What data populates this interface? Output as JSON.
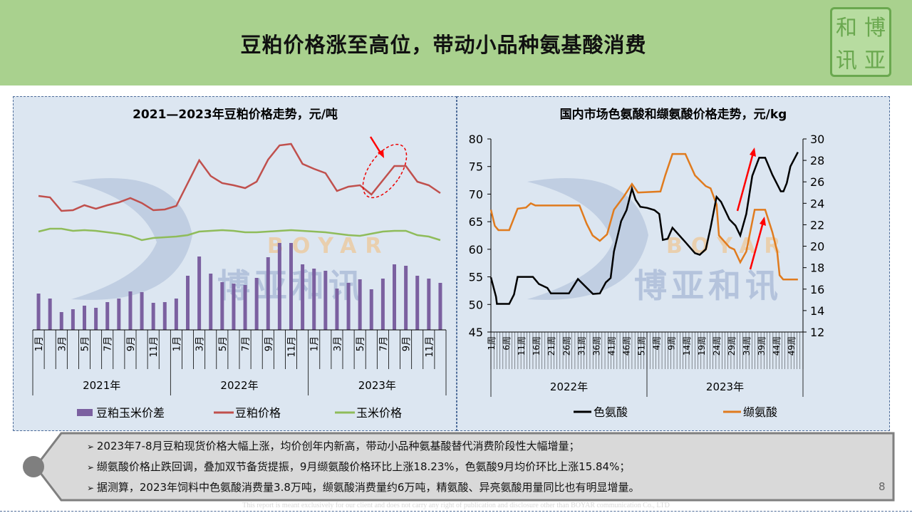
{
  "header": {
    "title": "豆粕价格涨至高位，带动小品种氨基酸消费",
    "logo_chars": [
      "和",
      "博",
      "讯",
      "亚"
    ]
  },
  "watermark": {
    "latin": "BOYAR",
    "chinese": "博亚和讯"
  },
  "colors": {
    "header": "#a9d18e",
    "bar": "#7b60a0",
    "soymeal": "#c0504d",
    "corn": "#8fbc5a",
    "trp": "#000000",
    "val": "#e07b1e",
    "arrow": "#ff0000"
  },
  "chart_data": [
    {
      "type": "bar+line",
      "title": "2021—2023年豆粕价格走势，元/吨",
      "years": [
        "2021年",
        "2022年",
        "2023年"
      ],
      "month_ticks": [
        "1月",
        "3月",
        "5月",
        "7月",
        "9月",
        "11月"
      ],
      "ylim": [
        0,
        283
      ],
      "note": "no y-axis labels shown; values are relative",
      "series": [
        {
          "name": "豆粕玉米价差",
          "kind": "bar",
          "values": [
            51,
            44,
            25,
            29,
            34,
            31,
            39,
            44,
            54,
            53,
            38,
            39,
            44,
            76,
            103,
            79,
            67,
            65,
            63,
            73,
            102,
            122,
            122,
            92,
            86,
            83,
            58,
            66,
            71,
            57,
            72,
            92,
            90,
            76,
            72,
            66
          ]
        },
        {
          "name": "豆粕价格",
          "kind": "line",
          "values": [
            188,
            186,
            167,
            168,
            175,
            170,
            175,
            179,
            185,
            178,
            168,
            169,
            174,
            206,
            238,
            216,
            206,
            203,
            199,
            208,
            239,
            259,
            261,
            233,
            226,
            220,
            195,
            201,
            203,
            190,
            210,
            230,
            230,
            208,
            203,
            192
          ]
        },
        {
          "name": "玉米价格",
          "kind": "line",
          "values": [
            138,
            142,
            142,
            139,
            140,
            139,
            137,
            135,
            132,
            126,
            129,
            130,
            131,
            133,
            138,
            139,
            140,
            139,
            137,
            137,
            138,
            139,
            140,
            139,
            138,
            137,
            135,
            133,
            132,
            135,
            138,
            139,
            139,
            133,
            131,
            126
          ]
        }
      ],
      "legend": [
        "豆粕玉米价差",
        "豆粕价格",
        "玉米价格"
      ],
      "legend_position": "bottom"
    },
    {
      "type": "line",
      "title": "国内市场色氨酸和缬氨酸价格走势，元/kg",
      "years": [
        "2022年",
        "2023年"
      ],
      "week_ticks_2022": [
        "1周",
        "6周",
        "11周",
        "16周",
        "21周",
        "26周",
        "31周",
        "36周",
        "41周",
        "46周",
        "51周"
      ],
      "week_ticks_2023": [
        "4周",
        "9周",
        "14周",
        "19周",
        "24周",
        "29周",
        "34周",
        "39周",
        "44周",
        "49周"
      ],
      "x_range_weeks": [
        0,
        104
      ],
      "y_left": {
        "ticks": [
          45,
          50,
          55,
          60,
          65,
          70,
          75,
          80
        ],
        "lim": [
          45,
          80
        ]
      },
      "y_right": {
        "ticks": [
          12,
          14,
          16,
          18,
          20,
          22,
          24,
          26,
          28,
          30
        ],
        "lim": [
          12,
          30
        ]
      },
      "series": [
        {
          "name": "色氨酸",
          "axis": "left",
          "points": [
            [
              0,
              54.9
            ],
            [
              1.7,
              51.4
            ],
            [
              2,
              50.1
            ],
            [
              6.1,
              50.1
            ],
            [
              7.7,
              51.8
            ],
            [
              8.9,
              55
            ],
            [
              14,
              55
            ],
            [
              16,
              53.7
            ],
            [
              18.8,
              53
            ],
            [
              20,
              52
            ],
            [
              26,
              52
            ],
            [
              29,
              54.6
            ],
            [
              34,
              51.9
            ],
            [
              36.3,
              52
            ],
            [
              38.3,
              54
            ],
            [
              39.9,
              54.8
            ],
            [
              41,
              59.6
            ],
            [
              43.4,
              65.1
            ],
            [
              45.2,
              67.1
            ],
            [
              47,
              71
            ],
            [
              48.2,
              69
            ],
            [
              49.8,
              67.7
            ],
            [
              52.1,
              67.5
            ],
            [
              54.5,
              67.1
            ],
            [
              56.1,
              66.4
            ],
            [
              57.3,
              61.7
            ],
            [
              58.9,
              61.9
            ],
            [
              60.5,
              63.9
            ],
            [
              64.8,
              61.3
            ],
            [
              68,
              59.3
            ],
            [
              69.6,
              59
            ],
            [
              71.6,
              60
            ],
            [
              73.2,
              63.9
            ],
            [
              75.2,
              69.5
            ],
            [
              76.7,
              68.6
            ],
            [
              79.5,
              65.4
            ],
            [
              81.5,
              64.3
            ],
            [
              83.1,
              62.5
            ],
            [
              85.1,
              66.4
            ],
            [
              87.1,
              73.3
            ],
            [
              89.4,
              76.6
            ],
            [
              91.4,
              76.6
            ],
            [
              93.8,
              73.5
            ],
            [
              96.6,
              70.5
            ],
            [
              97.5,
              70.5
            ],
            [
              98.6,
              72
            ],
            [
              99.8,
              75
            ],
            [
              102.3,
              77.6
            ]
          ]
        },
        {
          "name": "缬氨酸",
          "axis": "right",
          "points": [
            [
              0,
              23.4
            ],
            [
              1.3,
              21.9
            ],
            [
              2.5,
              21.5
            ],
            [
              6.1,
              21.5
            ],
            [
              8.9,
              23.5
            ],
            [
              11.7,
              23.6
            ],
            [
              13.3,
              24
            ],
            [
              14.8,
              23.8
            ],
            [
              29.5,
              23.8
            ],
            [
              31.9,
              22.1
            ],
            [
              33.9,
              21
            ],
            [
              36.3,
              20.5
            ],
            [
              38.7,
              21.1
            ],
            [
              41,
              23.4
            ],
            [
              44.2,
              24.6
            ],
            [
              47,
              25.8
            ],
            [
              49,
              25
            ],
            [
              56.5,
              25.1
            ],
            [
              58.1,
              26.6
            ],
            [
              60.5,
              28.6
            ],
            [
              64.8,
              28.6
            ],
            [
              68,
              26.6
            ],
            [
              71.6,
              25.6
            ],
            [
              73.2,
              25.4
            ],
            [
              75.2,
              23.9
            ],
            [
              76,
              21
            ],
            [
              79.5,
              19.9
            ],
            [
              81.1,
              19.7
            ],
            [
              83.1,
              18.5
            ],
            [
              85.1,
              19.5
            ],
            [
              87.9,
              23.4
            ],
            [
              91.4,
              23.4
            ],
            [
              93.8,
              21.3
            ],
            [
              95.4,
              19.5
            ],
            [
              96.2,
              17.3
            ],
            [
              97.4,
              16.9
            ],
            [
              102.3,
              16.9
            ]
          ]
        }
      ],
      "legend": [
        "色氨酸",
        "缬氨酸"
      ],
      "legend_position": "bottom"
    }
  ],
  "bullets": [
    "2023年7-8月豆粕现货价格大幅上涨，均价创年内新高，带动小品种氨基酸替代消费阶段性大幅增量；",
    "缬氨酸价格止跌回调，叠加双节备货提振，9月缬氨酸价格环比上涨18.23%，色氨酸9月均价环比上涨15.84%；",
    "据测算，2023年饲料中色氨酸消费量3.8万吨，缬氨酸消费量约6万吨，精氨酸、异亮氨酸用量同比也有明显增量。"
  ],
  "page_number": "8",
  "footer": "This report is meant exclusively for our client and does not carry any right of publication and disclosure other than BOYAR communication Co., LTD"
}
